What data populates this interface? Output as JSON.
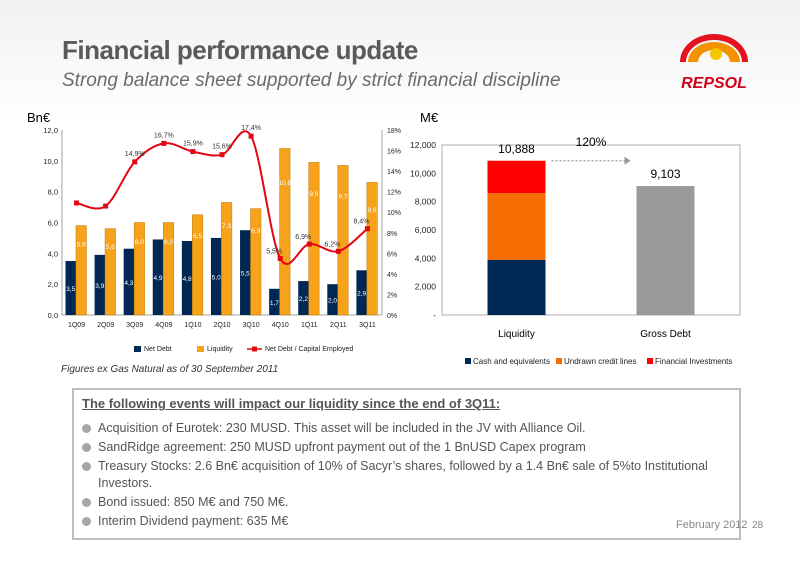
{
  "header": {
    "title": "Financial performance update",
    "subtitle": "Strong balance sheet supported by strict financial discipline"
  },
  "logo": {
    "text": "REPSOL",
    "colors": [
      "#f39200",
      "#e30613",
      "#f7c600"
    ]
  },
  "footnote": "Figures ex Gas Natural as of 30 September 2011",
  "events": {
    "title": "The following events will impact our liquidity since the end of 3Q11:",
    "items": [
      "Acquisition of Eurotek: 230 MUSD. This asset will be included in the JV with Alliance Oil.",
      "SandRidge agreement: 250 MUSD upfront payment out of the 1 BnUSD Capex program",
      "Treasury Stocks: 2.6 Bn€ acquisition of 10% of Sacyr’s shares, followed by a 1.4 Bn€ sale of 5%to Institutional Investors.",
      "Bond issued: 850 M€ and 750 M€.",
      "Interim Dividend payment: 635 M€"
    ]
  },
  "footer": {
    "date": "February 2012",
    "page": "28"
  },
  "chart_data": [
    {
      "type": "bar",
      "unit_label": "Bn€",
      "categories": [
        "1Q09",
        "2Q09",
        "3Q09",
        "4Q09",
        "1Q10",
        "2Q10",
        "3Q10",
        "4Q10",
        "1Q11",
        "2Q11",
        "3Q11"
      ],
      "series": [
        {
          "name": "Net Debt",
          "color": "#002855",
          "values": [
            3.5,
            3.9,
            4.3,
            4.9,
            4.8,
            5.0,
            5.5,
            1.7,
            2.2,
            2.0,
            2.9
          ],
          "labels": [
            "3,5",
            "3,9",
            "4,3",
            "4,9",
            "4,8",
            "5,0",
            "5,5",
            "1,7",
            "2,2",
            "2,0",
            "2,9"
          ]
        },
        {
          "name": "Liquidity",
          "color": "#f7a21b",
          "values": [
            5.8,
            5.6,
            6.0,
            6.0,
            6.5,
            7.3,
            6.9,
            10.8,
            9.9,
            9.7,
            8.6
          ],
          "labels": [
            "5,8",
            "5,6",
            "6,0",
            "6,0",
            "6,5",
            "7,3",
            "6,9",
            "10,8",
            "9,9",
            "9,7",
            "8,6"
          ]
        },
        {
          "name": "Net Debt / Capital Employed",
          "color": "#e30613",
          "axis": "right",
          "values": [
            10.9,
            10.6,
            14.9,
            16.7,
            15.9,
            15.6,
            17.4,
            5.5,
            6.9,
            6.2,
            8.4
          ],
          "labels": [
            "",
            "",
            "14,9%",
            "16,7%",
            "15,9%",
            "15,6%",
            "17,4%",
            "5,5%",
            "6,9%",
            "6,2%",
            "8,4%"
          ]
        }
      ],
      "ylim": [
        0,
        12
      ],
      "yticks": [
        "0,0",
        "2,0",
        "4,0",
        "6,0",
        "8,0",
        "10,0",
        "12,0"
      ],
      "y2lim": [
        0,
        18
      ],
      "y2ticks": [
        "0%",
        "2%",
        "4%",
        "6%",
        "8%",
        "10%",
        "12%",
        "14%",
        "16%",
        "18%"
      ],
      "legend_position": "bottom"
    },
    {
      "type": "bar",
      "stacked": true,
      "unit_label": "M€",
      "categories": [
        "Liquidity",
        "Gross Debt"
      ],
      "series": [
        {
          "name": "Cash and equivalents",
          "color": "#002855",
          "values": [
            3900,
            0
          ]
        },
        {
          "name": "Undrawn credit lines",
          "color": "#f56d00",
          "values": [
            4700,
            0
          ]
        },
        {
          "name": "Financial Investments",
          "color": "#ff0000",
          "values": [
            2288,
            0
          ]
        },
        {
          "name": "",
          "color": "#999999",
          "values": [
            0,
            9103
          ]
        }
      ],
      "totals": [
        "10,888",
        "9,103"
      ],
      "ratio_label": "120%",
      "ylim": [
        0,
        12000
      ],
      "yticks": [
        "-",
        "2,000",
        "4,000",
        "6,000",
        "8,000",
        "10,000",
        "12,000"
      ],
      "legend_position": "bottom"
    }
  ]
}
